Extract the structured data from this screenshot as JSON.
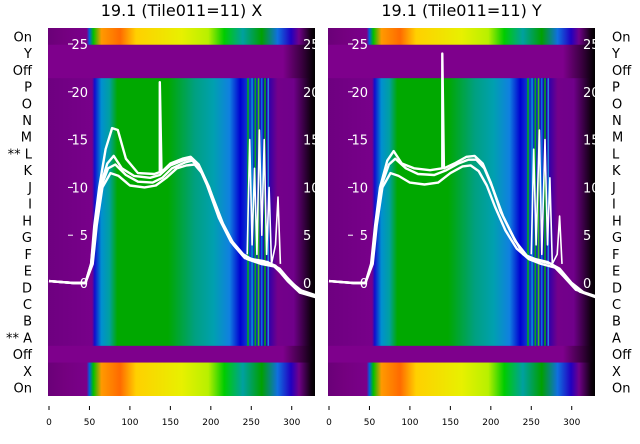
{
  "chart_data": [
    {
      "type": "heatmap",
      "title": "19.1 (Tile011=11) X",
      "row_labels": [
        "On",
        "Y",
        "Off",
        "P",
        "O",
        "N",
        "M",
        "** L",
        "K",
        "J",
        "I",
        "H",
        "G",
        "F",
        "E",
        "D",
        "C",
        "B",
        "** A",
        "Off",
        "X",
        "On"
      ],
      "x_ticks": [
        "0",
        "50",
        "100",
        "150",
        "200",
        "250",
        "300"
      ],
      "xlim": [
        0,
        330
      ],
      "y2_ticks": [
        "0",
        "5",
        "10",
        "15",
        "20",
        "25"
      ],
      "y2lim": [
        -3,
        27
      ],
      "series": [
        {
          "name": "trace-1",
          "points": [
            [
              0,
              0.2
            ],
            [
              30,
              0
            ],
            [
              45,
              0
            ],
            [
              52,
              2
            ],
            [
              56,
              6
            ],
            [
              62,
              10
            ],
            [
              70,
              14
            ],
            [
              78,
              16.2
            ],
            [
              85,
              16
            ],
            [
              95,
              13
            ],
            [
              110,
              11.5
            ],
            [
              130,
              11.4
            ],
            [
              137,
              11.6
            ],
            [
              137,
              21
            ],
            [
              139,
              11.6
            ],
            [
              150,
              12.5
            ],
            [
              165,
              13
            ],
            [
              175,
              13.2
            ],
            [
              185,
              12.4
            ],
            [
              195,
              10.5
            ],
            [
              210,
              7
            ],
            [
              225,
              4.5
            ],
            [
              240,
              3
            ],
            [
              250,
              2.5
            ],
            [
              265,
              2.3
            ],
            [
              280,
              1.8
            ],
            [
              295,
              0.5
            ],
            [
              310,
              -0.8
            ],
            [
              330,
              -1.4
            ]
          ]
        },
        {
          "name": "trace-2",
          "points": [
            [
              0,
              0.2
            ],
            [
              30,
              0
            ],
            [
              45,
              0
            ],
            [
              52,
              2
            ],
            [
              57,
              6
            ],
            [
              63,
              10
            ],
            [
              72,
              12.5
            ],
            [
              80,
              13.3
            ],
            [
              90,
              12
            ],
            [
              105,
              11.2
            ],
            [
              125,
              11
            ],
            [
              137,
              11.3
            ],
            [
              150,
              12.3
            ],
            [
              165,
              12.8
            ],
            [
              175,
              13
            ],
            [
              185,
              12.2
            ],
            [
              195,
              10.3
            ],
            [
              210,
              6.8
            ],
            [
              225,
              4.3
            ],
            [
              240,
              2.8
            ],
            [
              255,
              2.4
            ],
            [
              270,
              2.2
            ],
            [
              285,
              1.5
            ],
            [
              300,
              0
            ],
            [
              315,
              -1
            ],
            [
              330,
              -1.4
            ]
          ]
        },
        {
          "name": "trace-3",
          "points": [
            [
              0,
              0.2
            ],
            [
              30,
              0
            ],
            [
              45,
              0
            ],
            [
              53,
              2
            ],
            [
              58,
              6
            ],
            [
              64,
              10
            ],
            [
              73,
              12
            ],
            [
              82,
              12.4
            ],
            [
              95,
              11.3
            ],
            [
              110,
              10.6
            ],
            [
              128,
              10.5
            ],
            [
              140,
              11
            ],
            [
              152,
              12
            ],
            [
              168,
              12.6
            ],
            [
              177,
              12.8
            ],
            [
              187,
              12
            ],
            [
              198,
              10
            ],
            [
              212,
              6.5
            ],
            [
              228,
              4
            ],
            [
              242,
              2.6
            ],
            [
              258,
              2.2
            ],
            [
              275,
              2
            ],
            [
              290,
              0.8
            ],
            [
              305,
              -0.6
            ],
            [
              330,
              -1.3
            ]
          ]
        },
        {
          "name": "trace-4",
          "points": [
            [
              0,
              0.2
            ],
            [
              30,
              0
            ],
            [
              45,
              0
            ],
            [
              54,
              2
            ],
            [
              59,
              6
            ],
            [
              66,
              10
            ],
            [
              76,
              11.5
            ],
            [
              86,
              11.2
            ],
            [
              100,
              10.2
            ],
            [
              118,
              10
            ],
            [
              132,
              10.2
            ],
            [
              145,
              11
            ],
            [
              158,
              12
            ],
            [
              170,
              12.3
            ],
            [
              180,
              12.4
            ],
            [
              190,
              11.4
            ],
            [
              200,
              9.5
            ],
            [
              215,
              6.2
            ],
            [
              230,
              3.8
            ],
            [
              245,
              2.5
            ],
            [
              262,
              2
            ],
            [
              280,
              1.7
            ],
            [
              295,
              0.2
            ],
            [
              310,
              -1
            ],
            [
              330,
              -1.5
            ]
          ]
        },
        {
          "name": "spikes",
          "points": [
            [
              245,
              3
            ],
            [
              248,
              15
            ],
            [
              251,
              4
            ],
            [
              254,
              12
            ],
            [
              257,
              3
            ],
            [
              260,
              16
            ],
            [
              263,
              5
            ],
            [
              266,
              15
            ],
            [
              269,
              3
            ],
            [
              272,
              10
            ],
            [
              275,
              2
            ],
            [
              280,
              4
            ],
            [
              283,
              9
            ],
            [
              286,
              2
            ]
          ]
        }
      ]
    },
    {
      "type": "heatmap",
      "title": "19.1 (Tile011=11) Y",
      "row_labels": [
        "On",
        "Y",
        "Off",
        "P",
        "O",
        "N",
        "M",
        "L",
        "K",
        "J",
        "I",
        "H",
        "G",
        "F",
        "E",
        "D",
        "C",
        "B",
        "A",
        "Off",
        "X",
        "On"
      ],
      "x_ticks": [
        "0",
        "50",
        "100",
        "150",
        "200",
        "250",
        "300"
      ],
      "xlim": [
        0,
        330
      ],
      "y2_ticks": [
        "0",
        "5",
        "10",
        "15",
        "20",
        "25"
      ],
      "y2lim": [
        -3,
        27
      ],
      "series": [
        {
          "name": "trace-1",
          "points": [
            [
              0,
              0.2
            ],
            [
              30,
              0
            ],
            [
              45,
              0
            ],
            [
              52,
              2
            ],
            [
              57,
              6
            ],
            [
              63,
              10
            ],
            [
              72,
              12.8
            ],
            [
              80,
              13.8
            ],
            [
              90,
              12.5
            ],
            [
              105,
              12
            ],
            [
              125,
              11.8
            ],
            [
              140,
              12
            ],
            [
              140,
              24
            ],
            [
              142,
              12
            ],
            [
              155,
              12.5
            ],
            [
              170,
              13.2
            ],
            [
              180,
              13.3
            ],
            [
              190,
              12.5
            ],
            [
              200,
              10.5
            ],
            [
              212,
              7.5
            ],
            [
              228,
              4.8
            ],
            [
              240,
              3
            ],
            [
              255,
              2.5
            ],
            [
              270,
              2.2
            ],
            [
              285,
              1.5
            ],
            [
              300,
              0
            ],
            [
              315,
              -1
            ],
            [
              330,
              -1.4
            ]
          ]
        },
        {
          "name": "trace-2",
          "points": [
            [
              0,
              0.2
            ],
            [
              30,
              0
            ],
            [
              45,
              0
            ],
            [
              53,
              2
            ],
            [
              58,
              6
            ],
            [
              64,
              10
            ],
            [
              74,
              12.4
            ],
            [
              82,
              13
            ],
            [
              95,
              12
            ],
            [
              110,
              11.4
            ],
            [
              130,
              11.3
            ],
            [
              145,
              11.8
            ],
            [
              160,
              12.5
            ],
            [
              172,
              12.9
            ],
            [
              182,
              12.9
            ],
            [
              192,
              12
            ],
            [
              202,
              10
            ],
            [
              215,
              7
            ],
            [
              230,
              4.4
            ],
            [
              245,
              2.8
            ],
            [
              260,
              2.3
            ],
            [
              275,
              2
            ],
            [
              290,
              0.7
            ],
            [
              305,
              -0.7
            ],
            [
              330,
              -1.4
            ]
          ]
        },
        {
          "name": "trace-3",
          "points": [
            [
              0,
              0.2
            ],
            [
              30,
              0
            ],
            [
              45,
              0
            ],
            [
              54,
              2
            ],
            [
              59,
              6
            ],
            [
              66,
              10
            ],
            [
              76,
              11.5
            ],
            [
              86,
              11.2
            ],
            [
              100,
              10.5
            ],
            [
              118,
              10.3
            ],
            [
              135,
              10.5
            ],
            [
              150,
              11.5
            ],
            [
              165,
              12.2
            ],
            [
              175,
              12.3
            ],
            [
              185,
              11.7
            ],
            [
              195,
              10.2
            ],
            [
              205,
              8
            ],
            [
              218,
              5.5
            ],
            [
              232,
              3.6
            ],
            [
              247,
              2.5
            ],
            [
              262,
              2
            ],
            [
              280,
              1.6
            ],
            [
              295,
              0.3
            ],
            [
              310,
              -0.9
            ],
            [
              330,
              -1.5
            ]
          ]
        },
        {
          "name": "spikes",
          "points": [
            [
              250,
              3
            ],
            [
              253,
              14
            ],
            [
              256,
              4
            ],
            [
              260,
              16
            ],
            [
              263,
              3
            ],
            [
              267,
              15
            ],
            [
              270,
              4
            ],
            [
              273,
              11
            ],
            [
              276,
              2
            ],
            [
              282,
              3
            ],
            [
              285,
              7
            ],
            [
              288,
              2
            ]
          ]
        }
      ]
    }
  ]
}
